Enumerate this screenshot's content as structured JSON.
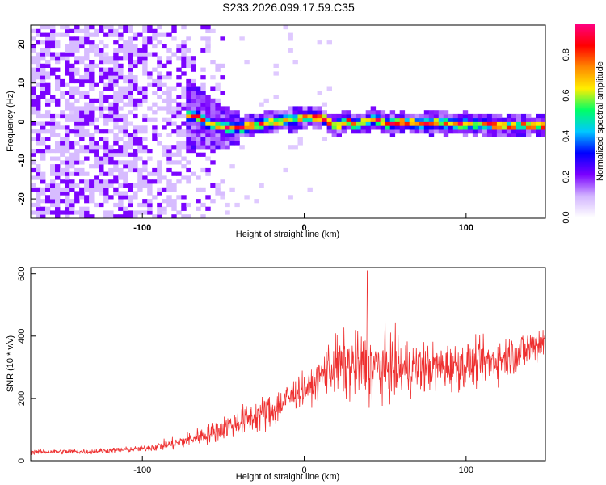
{
  "title": "S233.2026.099.17.59.C35",
  "chart_data": [
    {
      "type": "heatmap",
      "name": "spectrogram",
      "xlabel": "Height of straight line (km)",
      "ylabel": "Frequency (Hz)",
      "xlim": [
        -169,
        149
      ],
      "ylim": [
        -25,
        25
      ],
      "xticks": [
        "-100",
        "0",
        "100"
      ],
      "yticks": [
        "20",
        "10",
        "0",
        "-10",
        "-20"
      ],
      "ridge": [
        {
          "x": -68,
          "y": 1.0
        },
        {
          "x": -60,
          "y": -1.0
        },
        {
          "x": -50,
          "y": -2.0
        },
        {
          "x": -40,
          "y": -2.0
        },
        {
          "x": -30,
          "y": -1.2
        },
        {
          "x": -20,
          "y": -0.5
        },
        {
          "x": -10,
          "y": 0.0
        },
        {
          "x": 0,
          "y": 0.8
        },
        {
          "x": 10,
          "y": 0.5
        },
        {
          "x": 18,
          "y": -1.8
        },
        {
          "x": 25,
          "y": 0.0
        },
        {
          "x": 30,
          "y": -1.5
        },
        {
          "x": 42,
          "y": 0.2
        },
        {
          "x": 50,
          "y": -1.2
        },
        {
          "x": 60,
          "y": -0.5
        },
        {
          "x": 70,
          "y": -1.0
        },
        {
          "x": 80,
          "y": -0.6
        },
        {
          "x": 90,
          "y": -1.0
        },
        {
          "x": 100,
          "y": -1.2
        },
        {
          "x": 110,
          "y": -1.2
        },
        {
          "x": 120,
          "y": -1.6
        },
        {
          "x": 130,
          "y": -1.5
        },
        {
          "x": 140,
          "y": -1.5
        },
        {
          "x": 149,
          "y": -1.7
        }
      ],
      "colorbar": {
        "label": "Normalized spectral amplitude",
        "range": [
          0,
          0.95
        ],
        "ticks": [
          "0.0",
          "0.2",
          "0.4",
          "0.6",
          "0.8"
        ],
        "tick_values": [
          0.0,
          0.2,
          0.4,
          0.6,
          0.8
        ],
        "colors": [
          "#ffffff",
          "#d2b4ff",
          "#7a00ff",
          "#0000ff",
          "#00c8ff",
          "#00ff66",
          "#ffee00",
          "#ff8800",
          "#ff0000",
          "#ff0080"
        ]
      }
    },
    {
      "type": "line",
      "name": "snr",
      "color": "#ee3030",
      "xlabel": "Height of straight line (km)",
      "ylabel": "SNR (10 * v/v)",
      "xlim": [
        -169,
        149
      ],
      "ylim": [
        0,
        620
      ],
      "xticks": [
        "-100",
        "0",
        "100"
      ],
      "yticks": [
        "600",
        "400",
        "200",
        "0"
      ],
      "trend": [
        {
          "x": -169,
          "y": 28
        },
        {
          "x": -130,
          "y": 30
        },
        {
          "x": -100,
          "y": 38
        },
        {
          "x": -80,
          "y": 55
        },
        {
          "x": -60,
          "y": 85
        },
        {
          "x": -40,
          "y": 125
        },
        {
          "x": -20,
          "y": 160
        },
        {
          "x": -5,
          "y": 220
        },
        {
          "x": 5,
          "y": 240
        },
        {
          "x": 15,
          "y": 300
        },
        {
          "x": 25,
          "y": 300
        },
        {
          "x": 40,
          "y": 300
        },
        {
          "x": 60,
          "y": 295
        },
        {
          "x": 80,
          "y": 300
        },
        {
          "x": 100,
          "y": 305
        },
        {
          "x": 120,
          "y": 325
        },
        {
          "x": 135,
          "y": 350
        },
        {
          "x": 149,
          "y": 390
        }
      ],
      "spread": [
        {
          "x": -169,
          "y": 10
        },
        {
          "x": -100,
          "y": 12
        },
        {
          "x": -60,
          "y": 40
        },
        {
          "x": -20,
          "y": 80
        },
        {
          "x": 5,
          "y": 60
        },
        {
          "x": 20,
          "y": 130
        },
        {
          "x": 40,
          "y": 150
        },
        {
          "x": 80,
          "y": 100
        },
        {
          "x": 149,
          "y": 80
        }
      ],
      "peak": {
        "x": 39,
        "y": 610
      }
    }
  ]
}
